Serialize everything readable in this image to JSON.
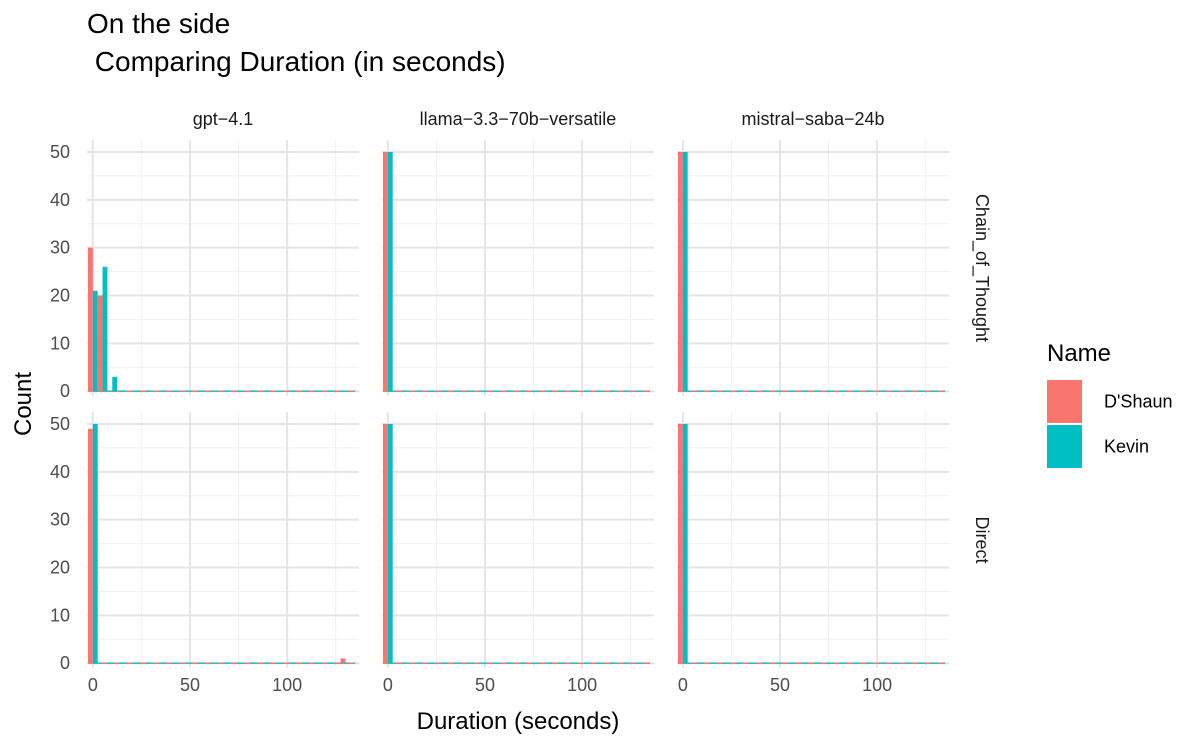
{
  "chart_data": {
    "type": "bar",
    "title_line1": "On the side",
    "title_line2": " Comparing Duration (in seconds)",
    "xlabel": "Duration (seconds)",
    "ylabel": "Count",
    "xlim": [
      -3,
      137
    ],
    "ylim": [
      -1,
      52.5
    ],
    "x_ticks": [
      0,
      50,
      100
    ],
    "y_ticks": [
      0,
      10,
      20,
      30,
      40,
      50
    ],
    "grid": true,
    "legend_placement": "right",
    "legend_title": "Name",
    "bin_width": 5,
    "columns": [
      "gpt−4.1",
      "llama−3.3−70b−versatile",
      "mistral−saba−24b"
    ],
    "rows": [
      "Chain_of_Thought",
      "Direct"
    ],
    "series": [
      {
        "name": "D'Shaun",
        "color": "#F8766D"
      },
      {
        "name": "Kevin",
        "color": "#00BFC4"
      }
    ],
    "panels": [
      {
        "column": "gpt−4.1",
        "row": "Chain_of_Thought",
        "bins": [
          {
            "x": 0,
            "values": [
              30,
              21
            ]
          },
          {
            "x": 5,
            "values": [
              20,
              26
            ]
          },
          {
            "x": 10,
            "values": [
              0,
              3
            ]
          }
        ]
      },
      {
        "column": "llama−3.3−70b−versatile",
        "row": "Chain_of_Thought",
        "bins": [
          {
            "x": 0,
            "values": [
              50,
              50
            ]
          }
        ]
      },
      {
        "column": "mistral−saba−24b",
        "row": "Chain_of_Thought",
        "bins": [
          {
            "x": 0,
            "values": [
              50,
              50
            ]
          }
        ]
      },
      {
        "column": "gpt−4.1",
        "row": "Direct",
        "bins": [
          {
            "x": 0,
            "values": [
              49,
              50
            ]
          },
          {
            "x": 130,
            "values": [
              1,
              0
            ]
          }
        ]
      },
      {
        "column": "llama−3.3−70b−versatile",
        "row": "Direct",
        "bins": [
          {
            "x": 0,
            "values": [
              50,
              50
            ]
          }
        ]
      },
      {
        "column": "mistral−saba−24b",
        "row": "Direct",
        "bins": [
          {
            "x": 0,
            "values": [
              50,
              50
            ]
          }
        ]
      }
    ]
  }
}
